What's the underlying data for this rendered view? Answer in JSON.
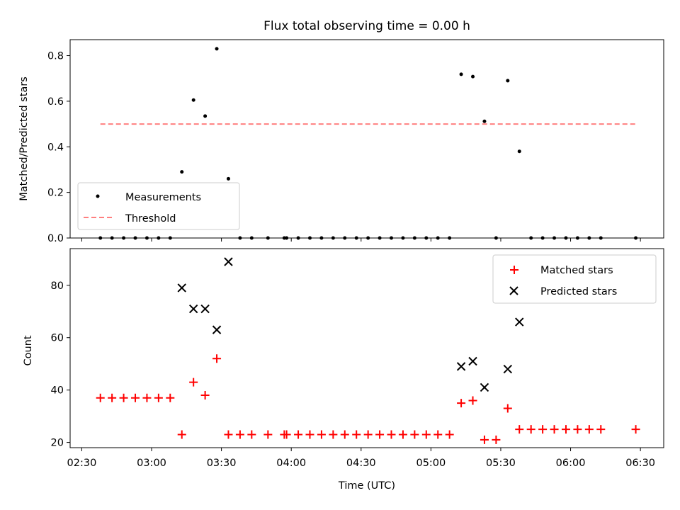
{
  "chart_data": [
    {
      "type": "scatter",
      "title": "Flux total observing time = 0.00 h",
      "ylabel": "Matched/Predicted stars",
      "xlabel": "",
      "ylim": [
        0,
        0.87
      ],
      "yticks": [
        0.0,
        0.2,
        0.4,
        0.6,
        0.8
      ],
      "ytick_labels": [
        "0.0",
        "0.2",
        "0.4",
        "0.6",
        "0.8"
      ],
      "grid": false,
      "legend_position": "lower-left",
      "series": [
        {
          "name": "Measurements",
          "color": "#000000",
          "marker": "dot",
          "points": [
            [
              "02:38",
              0
            ],
            [
              "02:43",
              0
            ],
            [
              "02:48",
              0
            ],
            [
              "02:53",
              0
            ],
            [
              "02:58",
              0
            ],
            [
              "03:03",
              0
            ],
            [
              "03:08",
              0
            ],
            [
              "03:13",
              0.29
            ],
            [
              "03:18",
              0.605
            ],
            [
              "03:23",
              0.535
            ],
            [
              "03:28",
              0.83
            ],
            [
              "03:33",
              0.26
            ],
            [
              "03:38",
              0
            ],
            [
              "03:43",
              0
            ],
            [
              "03:50",
              0
            ],
            [
              "03:57",
              0
            ],
            [
              "03:58",
              0
            ],
            [
              "04:03",
              0
            ],
            [
              "04:08",
              0
            ],
            [
              "04:13",
              0
            ],
            [
              "04:18",
              0
            ],
            [
              "04:23",
              0
            ],
            [
              "04:28",
              0
            ],
            [
              "04:33",
              0
            ],
            [
              "04:38",
              0
            ],
            [
              "04:43",
              0
            ],
            [
              "04:48",
              0
            ],
            [
              "04:53",
              0
            ],
            [
              "04:58",
              0
            ],
            [
              "05:03",
              0
            ],
            [
              "05:08",
              0
            ],
            [
              "05:13",
              0.718
            ],
            [
              "05:18",
              0.708
            ],
            [
              "05:23",
              0.512
            ],
            [
              "05:28",
              0
            ],
            [
              "05:33",
              0.69
            ],
            [
              "05:38",
              0.38
            ],
            [
              "05:43",
              0
            ],
            [
              "05:48",
              0
            ],
            [
              "05:53",
              0
            ],
            [
              "05:58",
              0
            ],
            [
              "06:03",
              0
            ],
            [
              "06:08",
              0
            ],
            [
              "06:13",
              0
            ],
            [
              "06:28",
              0
            ]
          ]
        },
        {
          "name": "Threshold",
          "color": "#ff7f7f",
          "style": "dashed-line",
          "points": [
            [
              "02:38",
              0.5
            ],
            [
              "06:28",
              0.5
            ]
          ]
        }
      ]
    },
    {
      "type": "scatter",
      "title": "",
      "xlabel": "Time (UTC)",
      "ylabel": "Count",
      "ylim": [
        18,
        94
      ],
      "yticks": [
        20,
        40,
        60,
        80
      ],
      "ytick_labels": [
        "20",
        "40",
        "60",
        "80"
      ],
      "xlim": [
        "02:25",
        "06:40"
      ],
      "xticks": [
        "02:30",
        "03:00",
        "03:30",
        "04:00",
        "04:30",
        "05:00",
        "05:30",
        "06:00",
        "06:30"
      ],
      "xtick_labels": [
        "02:30",
        "03:00",
        "03:30",
        "04:00",
        "04:30",
        "05:00",
        "05:30",
        "06:00",
        "06:30"
      ],
      "grid": false,
      "legend_position": "top-right",
      "series": [
        {
          "name": "Matched stars",
          "color": "#ff0000",
          "marker": "plus",
          "points": [
            [
              "02:38",
              37
            ],
            [
              "02:43",
              37
            ],
            [
              "02:48",
              37
            ],
            [
              "02:53",
              37
            ],
            [
              "02:58",
              37
            ],
            [
              "03:03",
              37
            ],
            [
              "03:08",
              37
            ],
            [
              "03:13",
              23
            ],
            [
              "03:18",
              43
            ],
            [
              "03:23",
              38
            ],
            [
              "03:28",
              52
            ],
            [
              "03:33",
              23
            ],
            [
              "03:38",
              23
            ],
            [
              "03:43",
              23
            ],
            [
              "03:50",
              23
            ],
            [
              "03:57",
              23
            ],
            [
              "03:58",
              23
            ],
            [
              "04:03",
              23
            ],
            [
              "04:08",
              23
            ],
            [
              "04:13",
              23
            ],
            [
              "04:18",
              23
            ],
            [
              "04:23",
              23
            ],
            [
              "04:28",
              23
            ],
            [
              "04:33",
              23
            ],
            [
              "04:38",
              23
            ],
            [
              "04:43",
              23
            ],
            [
              "04:48",
              23
            ],
            [
              "04:53",
              23
            ],
            [
              "04:58",
              23
            ],
            [
              "05:03",
              23
            ],
            [
              "05:08",
              23
            ],
            [
              "05:13",
              35
            ],
            [
              "05:18",
              36
            ],
            [
              "05:23",
              21
            ],
            [
              "05:28",
              21
            ],
            [
              "05:33",
              33
            ],
            [
              "05:38",
              25
            ],
            [
              "05:43",
              25
            ],
            [
              "05:48",
              25
            ],
            [
              "05:53",
              25
            ],
            [
              "05:58",
              25
            ],
            [
              "06:03",
              25
            ],
            [
              "06:08",
              25
            ],
            [
              "06:13",
              25
            ],
            [
              "06:28",
              25
            ]
          ]
        },
        {
          "name": "Predicted stars",
          "color": "#000000",
          "marker": "x",
          "points": [
            [
              "03:13",
              79
            ],
            [
              "03:18",
              71
            ],
            [
              "03:23",
              71
            ],
            [
              "03:28",
              63
            ],
            [
              "03:33",
              89
            ],
            [
              "05:13",
              49
            ],
            [
              "05:18",
              51
            ],
            [
              "05:23",
              41
            ],
            [
              "05:33",
              48
            ],
            [
              "05:38",
              66
            ]
          ]
        }
      ]
    }
  ]
}
